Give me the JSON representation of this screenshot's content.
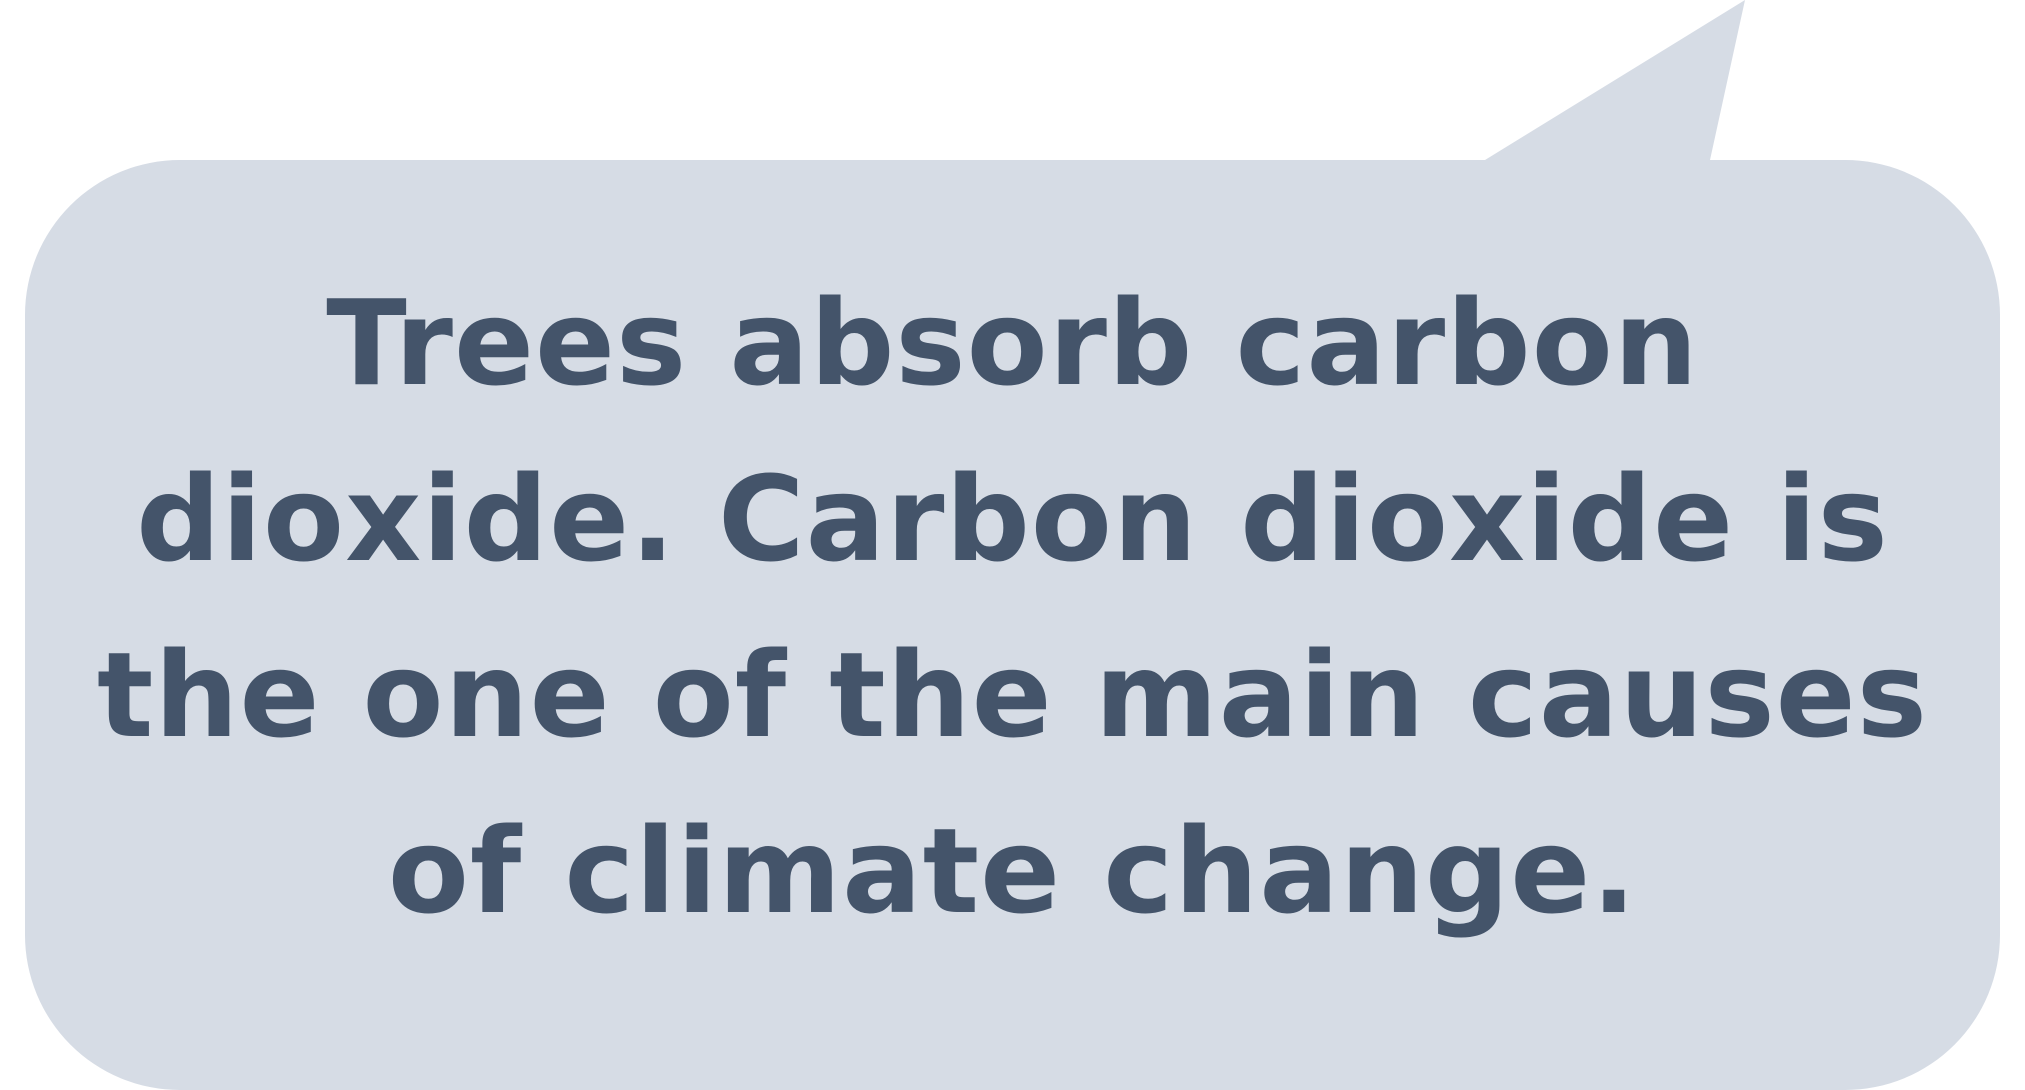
{
  "speech_bubble": {
    "fill_color": "#d6dce5",
    "text_color": "#44546a",
    "text": "Trees absorb carbon dioxide. Carbon dioxide is the one of the main causes of climate change."
  }
}
